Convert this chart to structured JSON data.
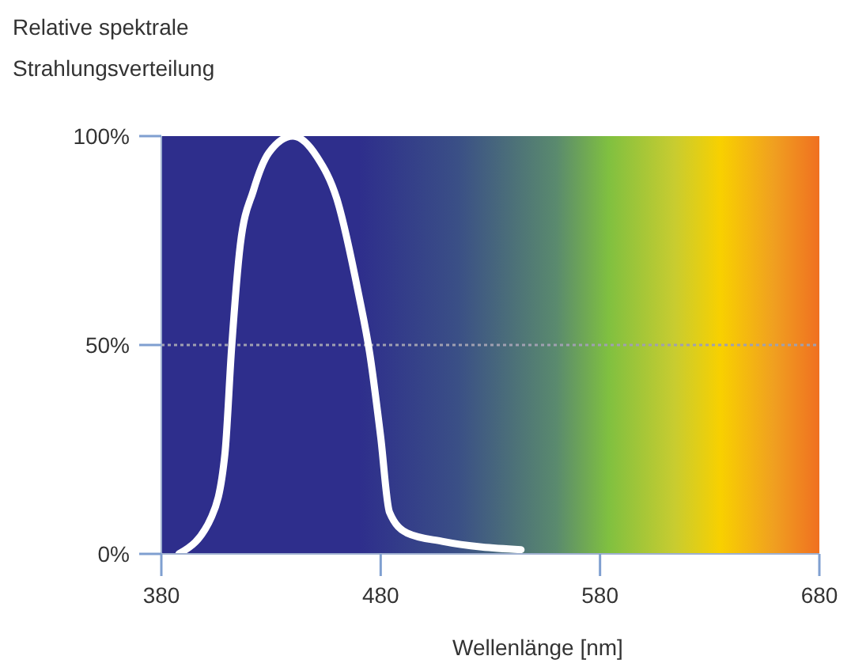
{
  "chart_data": {
    "type": "line",
    "ylabel": "Relative spektrale Strahlungsverteilung",
    "xlabel": "Wellenlänge [nm]",
    "x": [
      388,
      403,
      409,
      412,
      416,
      422,
      429,
      440,
      451,
      460,
      470,
      475,
      480,
      484,
      492,
      508,
      544
    ],
    "series": [
      {
        "color": "#ffffff",
        "values": [
          0,
          9,
          24,
          49,
          74,
          87,
          96,
          100,
          95,
          85,
          62,
          48,
          28,
          10,
          5,
          3,
          1
        ]
      }
    ],
    "xlim": [
      380,
      680
    ],
    "xticks": [
      380,
      480,
      580,
      680
    ],
    "ylim": [
      0,
      100
    ],
    "yticks": [
      {
        "value": 0,
        "label": "0%"
      },
      {
        "value": 50,
        "label": "50%"
      },
      {
        "value": 100,
        "label": "100%"
      }
    ],
    "ref_lines": [
      {
        "axis": "y",
        "value": 50,
        "color": "#a0a0b0",
        "line_style": "dotted"
      }
    ]
  }
}
